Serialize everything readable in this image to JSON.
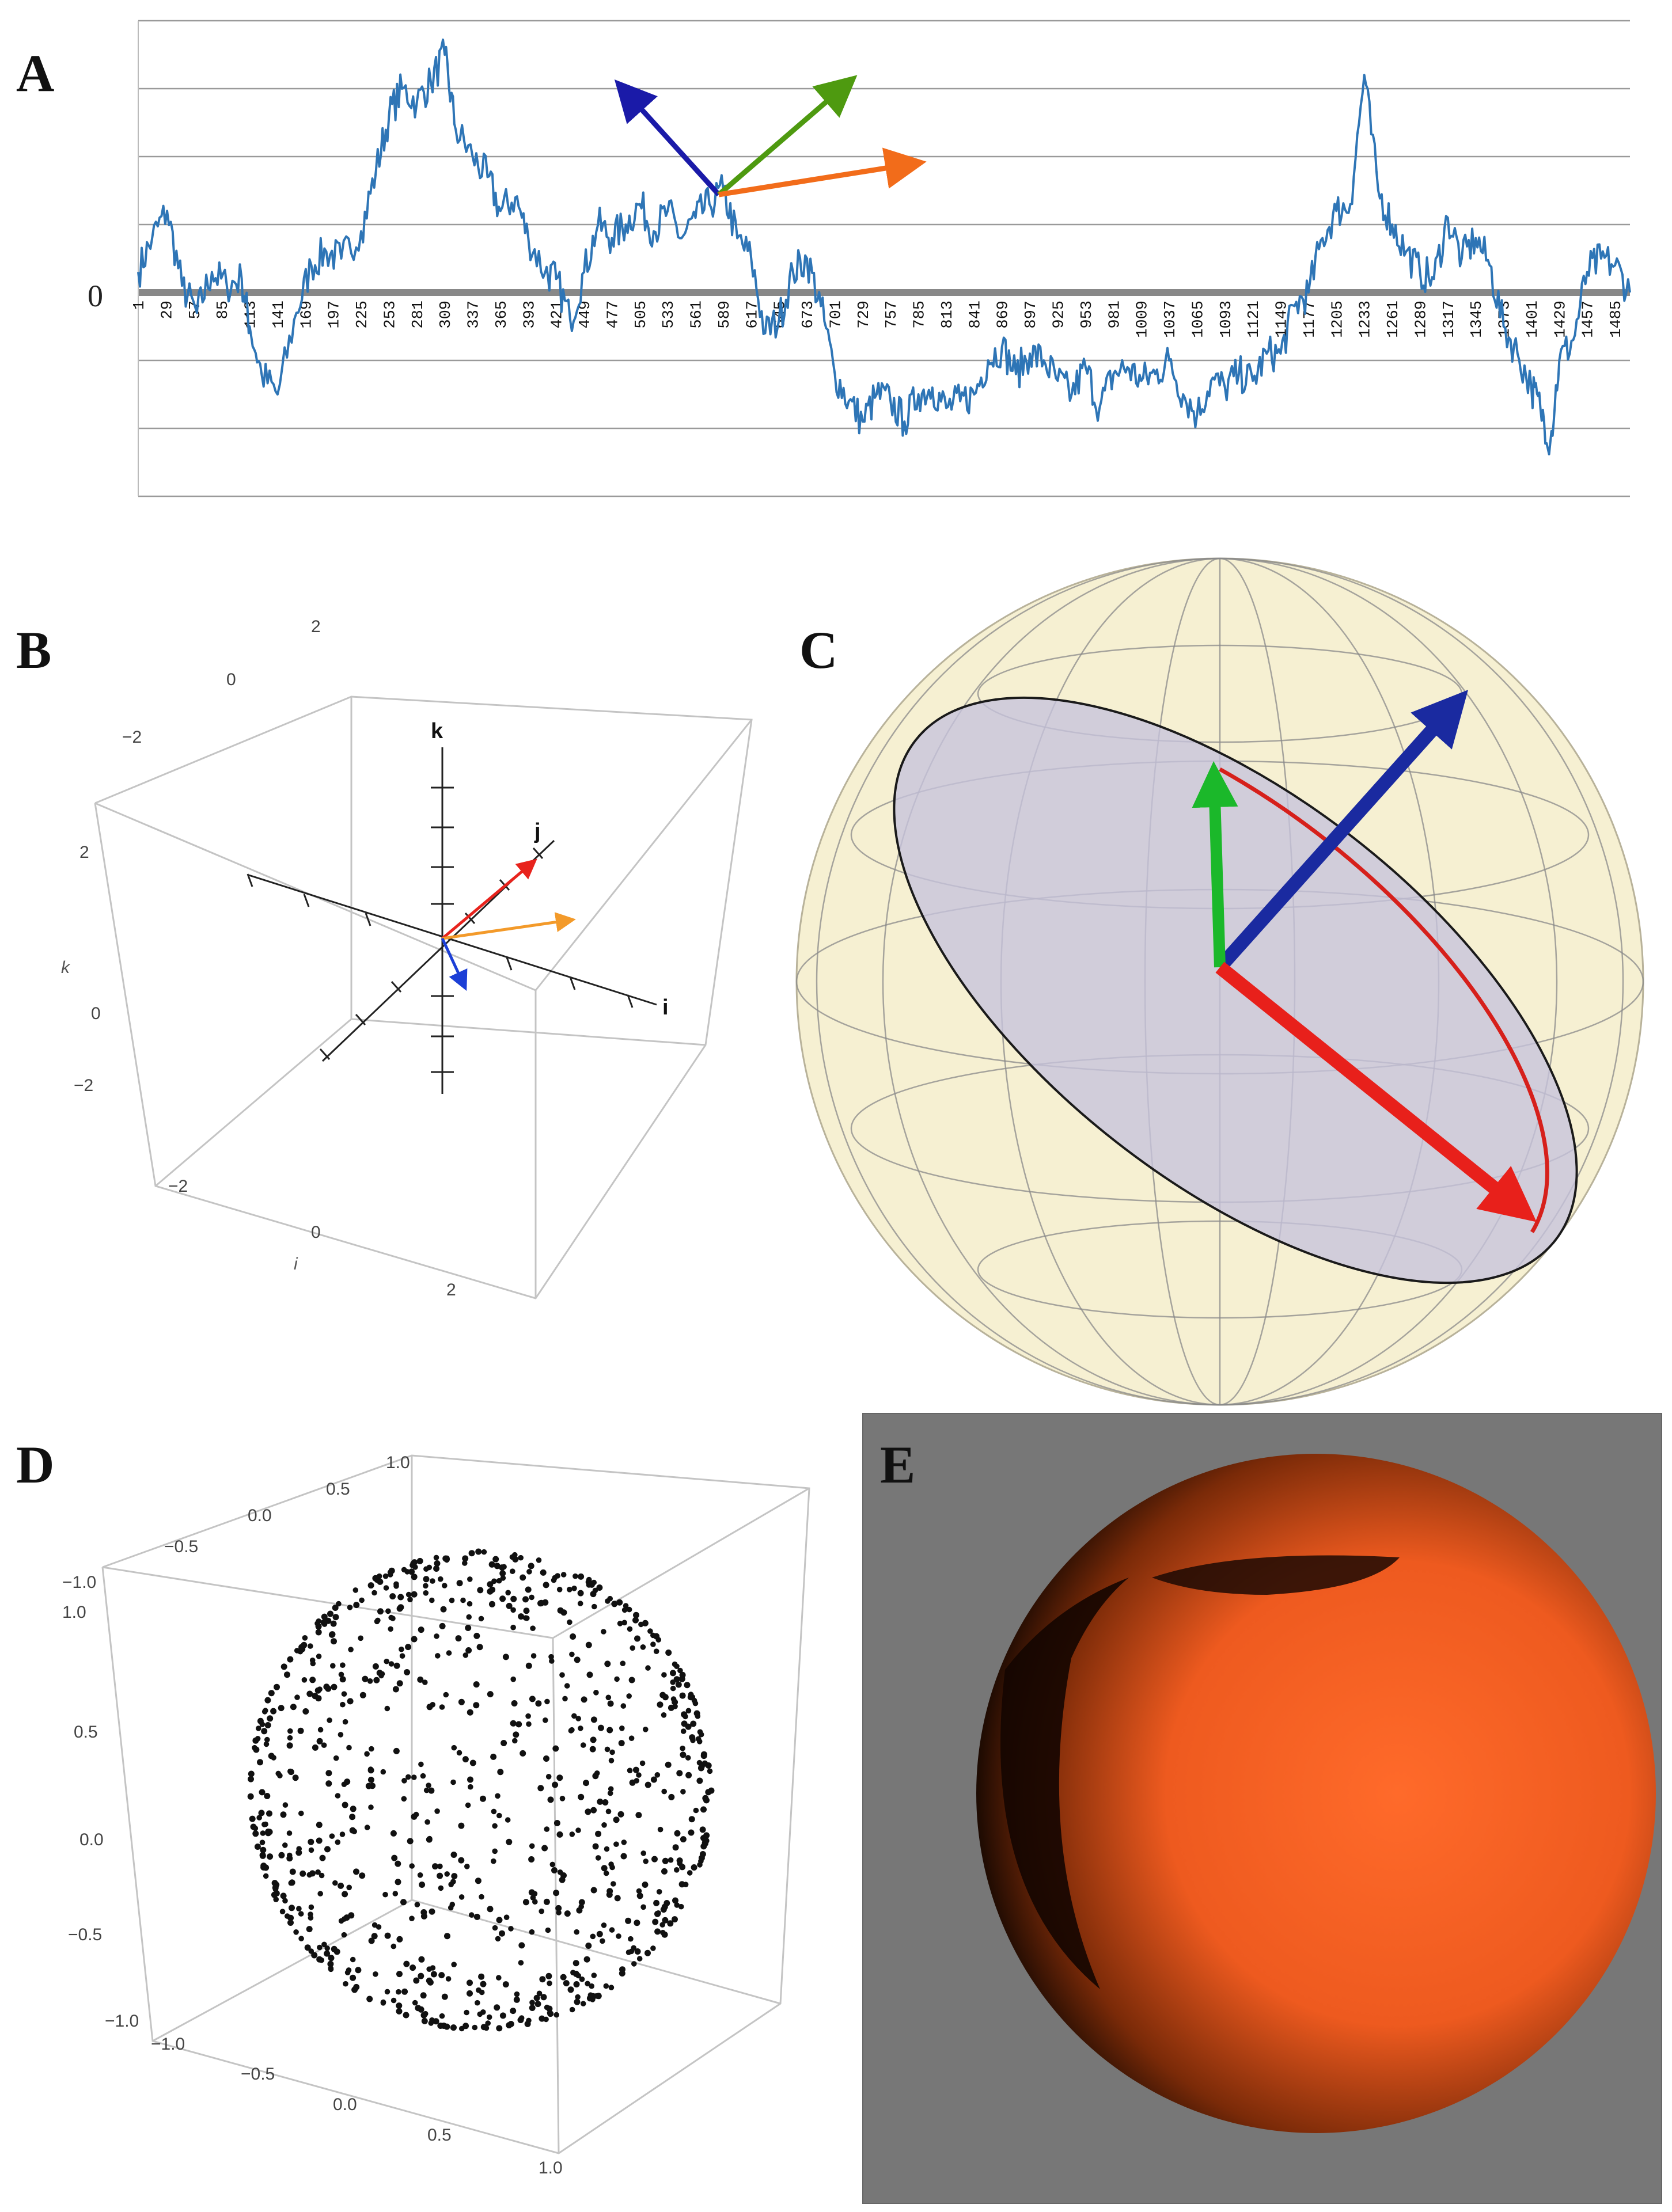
{
  "figure": {
    "panels": [
      {
        "letter": "A"
      },
      {
        "letter": "B"
      },
      {
        "letter": "C"
      },
      {
        "letter": "D"
      },
      {
        "letter": "E"
      }
    ]
  },
  "chart_data": [
    {
      "panel": "A",
      "type": "line",
      "y_zero_label": "0",
      "x_tick_labels": [
        "1",
        "29",
        "57",
        "85",
        "113",
        "141",
        "169",
        "197",
        "225",
        "253",
        "281",
        "309",
        "337",
        "365",
        "393",
        "421",
        "449",
        "477",
        "505",
        "533",
        "561",
        "589",
        "617",
        "645",
        "673",
        "701",
        "729",
        "757",
        "785",
        "813",
        "841",
        "869",
        "897",
        "925",
        "953",
        "981",
        "1009",
        "1037",
        "1065",
        "1093",
        "1121",
        "1149",
        "1177",
        "1205",
        "1233",
        "1261",
        "1289",
        "1317",
        "1345",
        "1373",
        "1401",
        "1429",
        "1457",
        "1485"
      ],
      "x_range": [
        1,
        1500
      ],
      "series": [
        {
          "color": "#2e75b6",
          "x": [
            1,
            15,
            30,
            45,
            60,
            75,
            90,
            105,
            113,
            125,
            141,
            160,
            175,
            190,
            205,
            225,
            240,
            253,
            266,
            281,
            295,
            309,
            320,
            337,
            352,
            365,
            380,
            393,
            410,
            421,
            435,
            449,
            463,
            477,
            491,
            505,
            519,
            533,
            547,
            561,
            575,
            589,
            603,
            617,
            631,
            645,
            659,
            673,
            687,
            701,
            715,
            729,
            743,
            757,
            771,
            785,
            799,
            813,
            827,
            841,
            855,
            869,
            883,
            897,
            911,
            925,
            939,
            953,
            967,
            981,
            995,
            1009,
            1023,
            1037,
            1051,
            1065,
            1079,
            1093,
            1107,
            1121,
            1135,
            1149,
            1163,
            1177,
            1191,
            1205,
            1219,
            1233,
            1247,
            1261,
            1275,
            1289,
            1303,
            1317,
            1331,
            1345,
            1359,
            1373,
            1387,
            1401,
            1410,
            1420,
            1429,
            1443,
            1457,
            1471,
            1485,
            1500
          ],
          "y": [
            0.3,
            0.8,
            1.2,
            0.1,
            -0.3,
            0.3,
            0.1,
            0.2,
            -0.5,
            -1.2,
            -1.5,
            -0.3,
            0.4,
            0.6,
            0.5,
            0.9,
            1.8,
            2.6,
            3.0,
            2.8,
            3.1,
            3.5,
            2.4,
            2.0,
            1.7,
            1.2,
            1.4,
            0.8,
            0.3,
            0.2,
            -0.4,
            0.3,
            1.0,
            0.8,
            1.0,
            1.3,
            0.9,
            1.2,
            0.8,
            1.1,
            1.3,
            1.5,
            0.8,
            0.5,
            -0.6,
            -0.4,
            0.3,
            0.5,
            -0.2,
            -1.2,
            -1.6,
            -1.9,
            -1.5,
            -1.6,
            -1.9,
            -1.5,
            -1.4,
            -1.7,
            -1.6,
            -1.5,
            -1.0,
            -0.8,
            -1.2,
            -0.9,
            -1.0,
            -1.3,
            -1.5,
            -1.1,
            -1.7,
            -1.2,
            -1.1,
            -1.3,
            -1.2,
            -1.0,
            -1.5,
            -1.8,
            -1.3,
            -1.4,
            -1.2,
            -1.3,
            -0.9,
            -0.9,
            -0.2,
            0.0,
            0.8,
            1.2,
            1.3,
            3.2,
            1.5,
            1.0,
            0.6,
            0.3,
            0.2,
            1.1,
            0.5,
            0.8,
            0.4,
            -0.5,
            -0.9,
            -1.4,
            -1.7,
            -2.2,
            -1.0,
            -0.7,
            0.3,
            0.5,
            0.4,
            0.0
          ]
        }
      ],
      "ylim": [
        -2.9,
        4.0
      ],
      "gridlines_y": [
        4.0,
        3.0,
        2.0,
        1.0,
        0.0,
        -1.0,
        -2.0,
        -3.0
      ],
      "grid": true,
      "overlay_vectors": [
        {
          "color": "#1a1aa8"
        },
        {
          "color": "#4e9a10"
        },
        {
          "color": "#f26c1a"
        }
      ]
    },
    {
      "panel": "B",
      "type": "scatter",
      "axis_labels": {
        "k_side": "k",
        "i_side": "i",
        "k_axis": "k",
        "j_axis": "j",
        "i_axis": "i"
      },
      "tick_labels_top": [
        "2",
        "0",
        "−2"
      ],
      "tick_labels_k": [
        "2",
        "0",
        "−2"
      ],
      "tick_labels_i": [
        "−2",
        "0",
        "2"
      ],
      "vectors": [
        {
          "color": "#e8231d"
        },
        {
          "color": "#f39a2a"
        },
        {
          "color": "#1c3fd6"
        }
      ]
    },
    {
      "panel": "C",
      "type": "scatter",
      "sphere_color": "#f6f0d2",
      "disk_color": "#c6c3dc",
      "vectors": [
        {
          "color": "#1a2aa0"
        },
        {
          "color": "#1bb82a"
        },
        {
          "color": "#e8201b"
        }
      ]
    },
    {
      "panel": "D",
      "type": "scatter",
      "tick_labels_top": [
        "−1.0",
        "−0.5",
        "0.0",
        "0.5",
        "1.0"
      ],
      "tick_labels_left": [
        "1.0",
        "0.5",
        "0.0",
        "−0.5",
        "−1.0"
      ],
      "tick_labels_bottom": [
        "−1.0",
        "−0.5",
        "0.0",
        "0.5",
        "1.0"
      ],
      "point_count": 900,
      "xlim": [
        -1.0,
        1.0
      ],
      "ylim": [
        -1.0,
        1.0
      ]
    },
    {
      "panel": "E",
      "type": "scatter",
      "background": "#777777",
      "sphere_color": "#f25a20"
    }
  ]
}
